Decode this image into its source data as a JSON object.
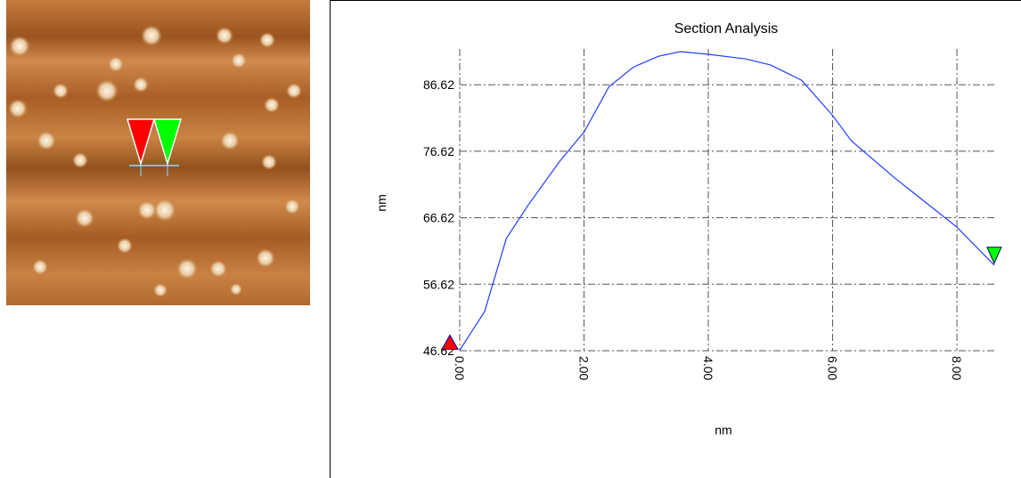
{
  "chart_data": {
    "type": "line",
    "title": "Section Analysis",
    "x_label": "nm",
    "y_label": "nm",
    "x": [
      0,
      0.4,
      0.75,
      1.1,
      1.6,
      2.0,
      2.4,
      2.8,
      3.2,
      3.55,
      4.0,
      4.6,
      5.0,
      5.5,
      6.0,
      6.3,
      7.0,
      8.0,
      8.6
    ],
    "series": [
      {
        "color": "#1f3fff",
        "values": [
          46.7,
          52.5,
          63.5,
          68.5,
          75,
          79.5,
          86.3,
          89.3,
          90.9,
          91.6,
          91.2,
          90.5,
          89.6,
          87.3,
          82,
          78.2,
          72.6,
          65.2,
          59.5
        ]
      }
    ],
    "xlim": [
      0,
      8.63
    ],
    "ylim": [
      46.62,
      92
    ],
    "xticks": [
      {
        "value": 0,
        "label": "0.00"
      },
      {
        "value": 2,
        "label": "2.00"
      },
      {
        "value": 4,
        "label": "4.00"
      },
      {
        "value": 6,
        "label": "6.00"
      },
      {
        "value": 8,
        "label": "8.00"
      }
    ],
    "yticks": [
      46.62,
      56.62,
      66.62,
      76.62,
      86.62
    ],
    "grid": true
  }
}
